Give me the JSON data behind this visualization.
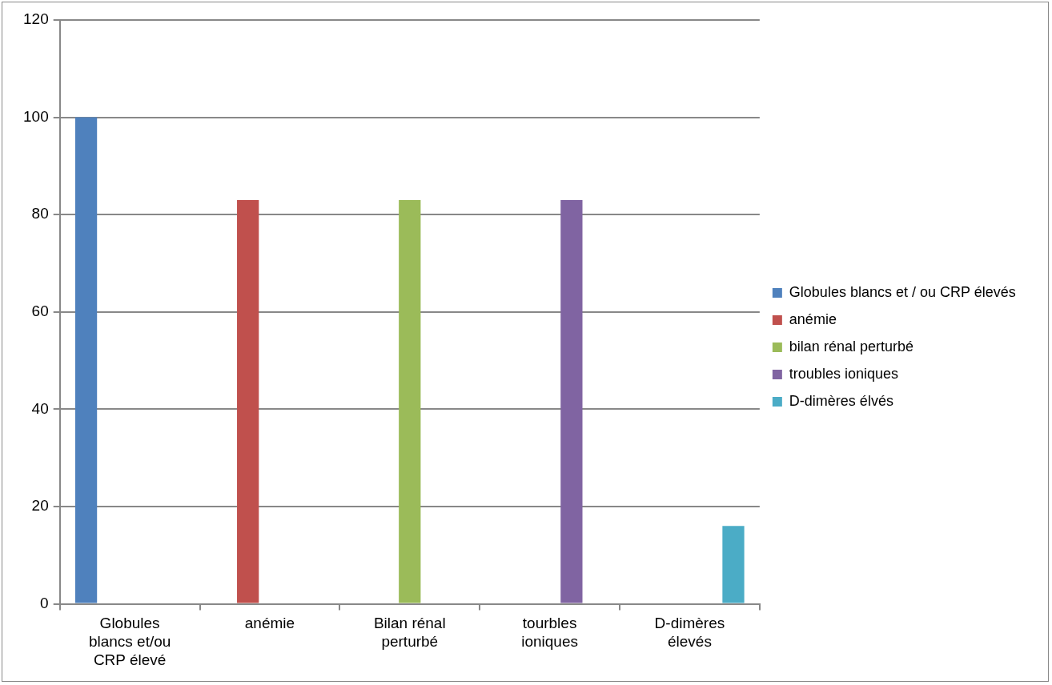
{
  "chart_data": {
    "type": "bar",
    "categories": [
      "Globules blancs et/ou CRP élevé",
      "anémie",
      "Bilan rénal perturbé",
      "tourbles ioniques",
      "D-dimères élevés"
    ],
    "series": [
      {
        "name": "Globules blancs et / ou CRP élevés",
        "color": "#4f81bd",
        "values": [
          100,
          null,
          null,
          null,
          null
        ]
      },
      {
        "name": "anémie",
        "color": "#c0504d",
        "values": [
          null,
          83,
          null,
          null,
          null
        ]
      },
      {
        "name": "bilan rénal perturbé",
        "color": "#9bbb59",
        "values": [
          null,
          null,
          83,
          null,
          null
        ]
      },
      {
        "name": "troubles ioniques",
        "color": "#8064a2",
        "values": [
          null,
          null,
          null,
          83,
          null
        ]
      },
      {
        "name": "D-dimères élvés",
        "color": "#4bacc6",
        "values": [
          null,
          null,
          null,
          null,
          16
        ]
      }
    ],
    "ylim": [
      0,
      120
    ],
    "yticks": [
      0,
      20,
      40,
      60,
      80,
      100,
      120
    ],
    "grid": "y",
    "legend": "right"
  }
}
